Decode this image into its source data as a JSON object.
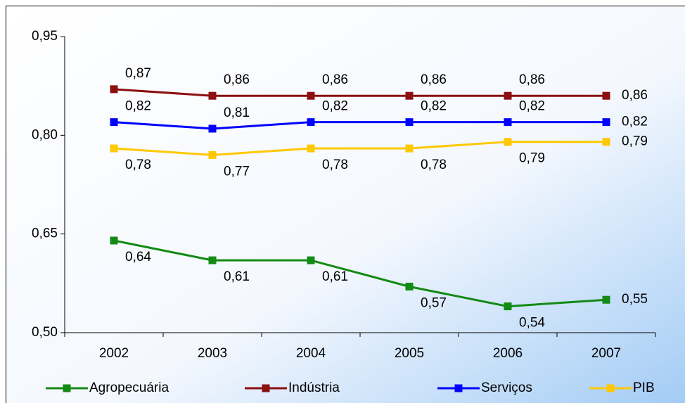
{
  "chart_data": {
    "type": "line",
    "categories": [
      "2002",
      "2003",
      "2004",
      "2005",
      "2006",
      "2007"
    ],
    "series": [
      {
        "name": "Agropecuária",
        "color": "#138a13",
        "values": [
          0.64,
          0.61,
          0.61,
          0.57,
          0.54,
          0.55
        ],
        "value_labels": [
          "0,64",
          "0,61",
          "0,61",
          "0,57",
          "0,54",
          "0,55"
        ]
      },
      {
        "name": "Indústria",
        "color": "#8b1010",
        "values": [
          0.87,
          0.86,
          0.86,
          0.86,
          0.86,
          0.86
        ],
        "value_labels": [
          "0,87",
          "0,86",
          "0,86",
          "0,86",
          "0,86",
          "0,86"
        ]
      },
      {
        "name": "Serviços",
        "color": "#0000ff",
        "values": [
          0.82,
          0.81,
          0.82,
          0.82,
          0.82,
          0.82
        ],
        "value_labels": [
          "0,82",
          "0,81",
          "0,82",
          "0,82",
          "0,82",
          "0,82"
        ]
      },
      {
        "name": "PIB",
        "color": "#ffc800",
        "values": [
          0.78,
          0.77,
          0.78,
          0.78,
          0.79,
          0.79
        ],
        "value_labels": [
          "0,78",
          "0,77",
          "0,78",
          "0,78",
          "0,79",
          "0,79"
        ]
      }
    ],
    "ylim": [
      0.5,
      0.95
    ],
    "yticks": [
      {
        "value": 0.5,
        "label": "0,50"
      },
      {
        "value": 0.65,
        "label": "0,65"
      },
      {
        "value": 0.8,
        "label": "0,80"
      },
      {
        "value": 0.95,
        "label": "0,95"
      }
    ],
    "legend": "bottom"
  }
}
